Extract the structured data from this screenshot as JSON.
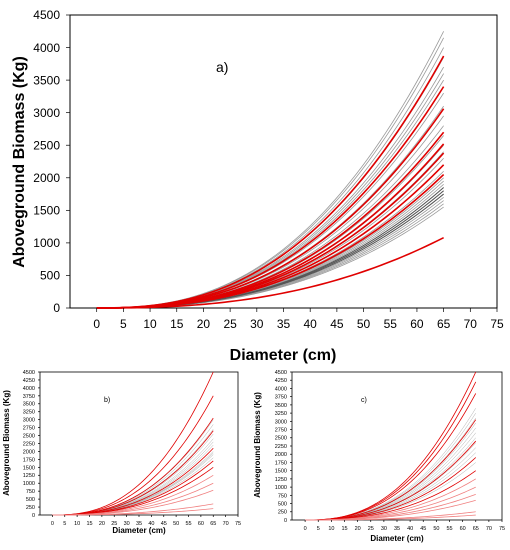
{
  "colors": {
    "grey": "#9a9a9a",
    "dark_grey": "#555555",
    "red": "#e00000",
    "light_red": "#f08080"
  },
  "chart_data": [
    {
      "id": "a",
      "type": "line",
      "panel_label": "a)",
      "xlabel": "Diameter (cm)",
      "ylabel": "Aboveground Biomass (Kg)",
      "xlim": [
        -5,
        75
      ],
      "ylim": [
        0,
        4500
      ],
      "xticks": [
        0,
        5,
        10,
        15,
        20,
        25,
        30,
        35,
        40,
        45,
        50,
        55,
        60,
        65,
        70,
        75
      ],
      "yticks": [
        0,
        500,
        1000,
        1500,
        2000,
        2500,
        3000,
        3500,
        4000,
        4500
      ],
      "x_domain": [
        0,
        65
      ],
      "grey_series_end_values": [
        4250,
        4150,
        4000,
        3850,
        3700,
        3600,
        3500,
        3300,
        3100,
        2950,
        2800,
        2650,
        2500,
        2400,
        2300,
        2200,
        2100,
        2000,
        1950,
        1900,
        1850,
        1800,
        1750,
        1700,
        1650,
        1600,
        1550
      ],
      "dark_series_end_values": [
        1850,
        1800,
        1750
      ],
      "red_series_end_values": [
        3870,
        3400,
        3060,
        2700,
        2520,
        2380,
        2200,
        2050,
        1080
      ]
    },
    {
      "id": "b",
      "type": "line",
      "panel_label": "b)",
      "xlabel": "Diameter (cm)",
      "ylabel": "Aboveground Biomass (Kg)",
      "xlim": [
        -5,
        75
      ],
      "ylim": [
        0,
        4500
      ],
      "xticks": [
        0,
        5,
        10,
        15,
        20,
        25,
        30,
        35,
        40,
        45,
        50,
        55,
        60,
        65,
        70,
        75
      ],
      "yticks": [
        0,
        250,
        500,
        750,
        1000,
        1250,
        1500,
        1750,
        2000,
        2250,
        2500,
        2750,
        3000,
        3250,
        3500,
        3750,
        4000,
        4250,
        4500
      ],
      "x_domain": [
        0,
        65
      ],
      "grey_series_end_values": [
        3000,
        2850,
        2700,
        2550,
        2400,
        2300,
        2200,
        2100,
        2000,
        1950,
        1900,
        1800
      ],
      "red_series_end_values": [
        4500,
        3750,
        3050,
        2650,
        2100,
        1700,
        1500,
        1250,
        1000,
        780,
        350,
        200
      ]
    },
    {
      "id": "c",
      "type": "line",
      "panel_label": "c)",
      "xlabel": "Diameter (cm)",
      "ylabel": "Aboveground Biomass (Kg)",
      "xlim": [
        -5,
        75
      ],
      "ylim": [
        0,
        4500
      ],
      "xticks": [
        0,
        5,
        10,
        15,
        20,
        25,
        30,
        35,
        40,
        45,
        50,
        55,
        60,
        65,
        70,
        75
      ],
      "yticks": [
        0,
        250,
        500,
        750,
        1000,
        1250,
        1500,
        1750,
        2000,
        2250,
        2500,
        2750,
        3000,
        3250,
        3500,
        3750,
        4000,
        4250,
        4500
      ],
      "x_domain": [
        0,
        65
      ],
      "grey_series_end_values": [
        3400,
        3250,
        3100,
        2950,
        2800,
        2650,
        2500,
        2350,
        2200,
        2050,
        1900,
        1750
      ],
      "red_series_end_values": [
        4500,
        4200,
        3850,
        3050,
        2400,
        1900,
        1500,
        1250,
        1000,
        780,
        600,
        250,
        150
      ]
    }
  ]
}
